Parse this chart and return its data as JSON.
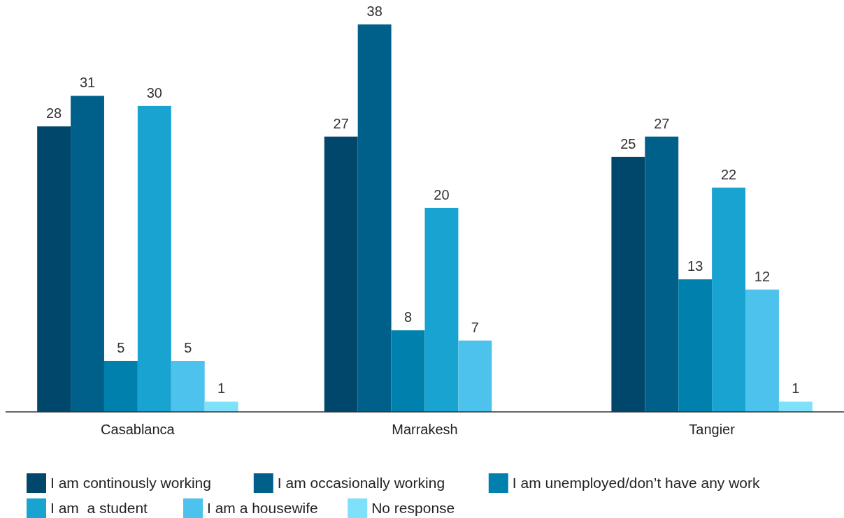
{
  "chart_data": {
    "type": "bar",
    "categories": [
      "Casablanca",
      "Marrakesh",
      "Tangier"
    ],
    "series": [
      {
        "name": "I am continously working",
        "color": "#00476b",
        "values": [
          28,
          27,
          25
        ]
      },
      {
        "name": "I am occasionally working",
        "color": "#006089",
        "values": [
          31,
          38,
          27
        ]
      },
      {
        "name": "I am unemployed/don’t have any work",
        "color": "#0081ad",
        "values": [
          5,
          8,
          13
        ]
      },
      {
        "name": "I am  a student",
        "color": "#19a3d0",
        "values": [
          30,
          20,
          22
        ]
      },
      {
        "name": "I am a housewife",
        "color": "#4cc2ec",
        "values": [
          5,
          7,
          12
        ]
      },
      {
        "name": "No response",
        "color": "#7ee0f9",
        "values": [
          1,
          null,
          1
        ]
      }
    ],
    "data_labels": true,
    "legend": "bottom"
  }
}
